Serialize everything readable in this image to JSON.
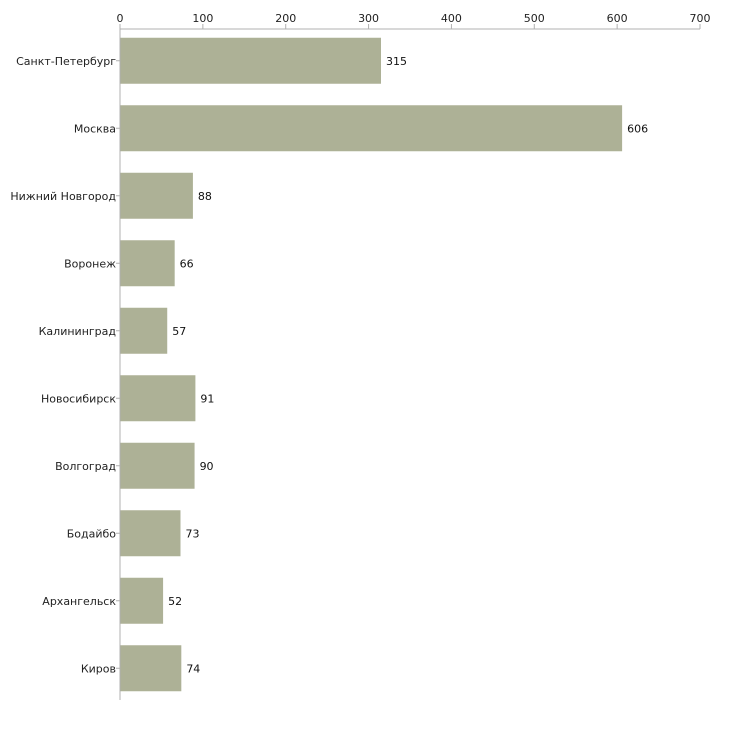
{
  "chart_data": {
    "type": "bar",
    "orientation": "horizontal",
    "title": "",
    "xlabel": "",
    "ylabel": "",
    "xlim": [
      0,
      700
    ],
    "ticks": [
      0,
      100,
      200,
      300,
      400,
      500,
      600,
      700
    ],
    "tick_labels": [
      "0",
      "100",
      "200",
      "300",
      "400",
      "500",
      "600",
      "700"
    ],
    "grid": false,
    "bar_color": "#adb196",
    "axis_color": "#b0b0b0",
    "categories": [
      "Санкт-Петербург",
      "Москва",
      "Нижний Новгород",
      "Воронеж",
      "Калининград",
      "Новосибирск",
      "Волгоград",
      "Бодайбо",
      "Архангельск",
      "Киров"
    ],
    "values": [
      315,
      606,
      88,
      66,
      57,
      91,
      90,
      73,
      52,
      74
    ],
    "value_labels": [
      "315",
      "606",
      "88",
      "66",
      "57",
      "91",
      "90",
      "73",
      "52",
      "74"
    ]
  }
}
